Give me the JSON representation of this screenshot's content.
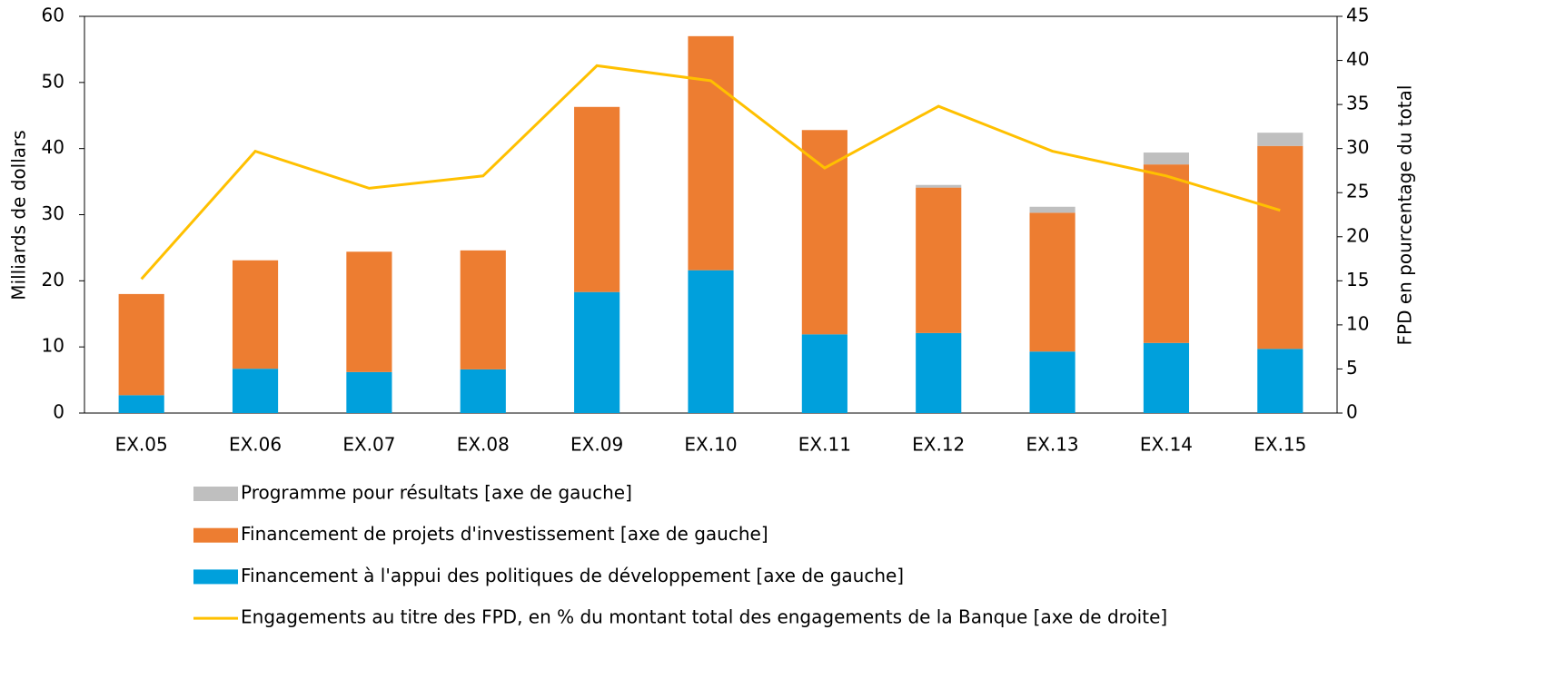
{
  "chart_data": {
    "type": "bar",
    "stacked": true,
    "categories": [
      "EX.05",
      "EX.06",
      "EX.07",
      "EX.08",
      "EX.09",
      "EX.10",
      "EX.11",
      "EX.12",
      "EX.13",
      "EX.14",
      "EX.15"
    ],
    "series": [
      {
        "name": "Programme pour résultats [axe de gauche]",
        "color": "#bfbfbf",
        "values": [
          0,
          0,
          0,
          0,
          0,
          0,
          0,
          0.4,
          0.9,
          1.8,
          2.0
        ]
      },
      {
        "name": "Financement de projets d'investissement [axe de gauche]",
        "color": "#ed7d31",
        "values": [
          15.3,
          16.4,
          18.2,
          18.0,
          28.0,
          35.4,
          30.9,
          22.0,
          21.0,
          27.0,
          30.7
        ]
      },
      {
        "name": "Financement à l'appui des politiques de développement [axe de gauche]",
        "color": "#00a0dc",
        "values": [
          2.7,
          6.7,
          6.2,
          6.6,
          18.3,
          21.6,
          11.9,
          12.1,
          9.3,
          10.6,
          9.7
        ]
      },
      {
        "name": "Engagements au titre des FPD, en % du montant total des engagements de la Banque [axe de droite]",
        "color": "#ffc000",
        "type": "line",
        "axis": "y2",
        "values": [
          15.2,
          29.7,
          25.5,
          26.9,
          39.4,
          37.7,
          27.8,
          34.8,
          29.7,
          26.9,
          23.0
        ]
      }
    ],
    "ylabel": "Milliards de dollars",
    "y2label": "FPD en pourcentage du total",
    "ylim": [
      0,
      60
    ],
    "yticks": [
      0,
      10,
      20,
      30,
      40,
      50,
      60
    ],
    "y2lim": [
      0,
      45
    ],
    "y2ticks": [
      0,
      5,
      10,
      15,
      20,
      25,
      30,
      35,
      40,
      45
    ],
    "legend": "bottom"
  }
}
